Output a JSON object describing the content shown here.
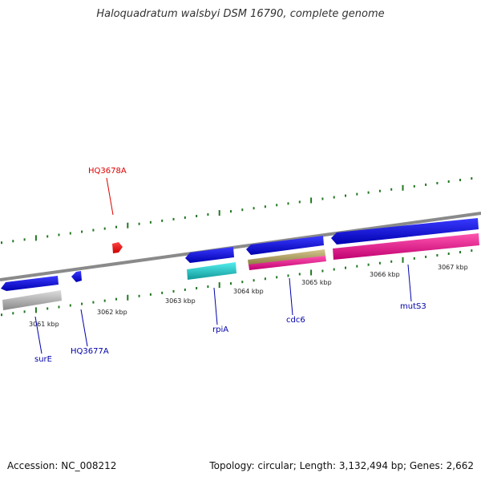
{
  "title": "Haloquadratum walsbyi DSM 16790, complete genome",
  "footer": {
    "accession": "Accession: NC_008212",
    "summary": "Topology: circular; Length: 3,132,494 bp; Genes: 2,662"
  },
  "scale_labels": [
    "3061 kbp",
    "3062 kbp",
    "3063 kbp",
    "3064 kbp",
    "3065 kbp",
    "3066 kbp",
    "3067 kbp"
  ],
  "genes": [
    {
      "name": "HQ3678A",
      "color": "#dd0000"
    },
    {
      "name": "surE",
      "color": "#0000aa"
    },
    {
      "name": "HQ3677A",
      "color": "#0000aa"
    },
    {
      "name": "rpiA",
      "color": "#0000aa"
    },
    {
      "name": "cdc6",
      "color": "#0000aa"
    },
    {
      "name": "mutS3",
      "color": "#0000aa"
    }
  ],
  "colors": {
    "cds": "#1010e0",
    "rrna_grey": "#bbbbbb",
    "cyan": "#22cccc",
    "tan": "#b8a860",
    "magenta": "#ee1a8c",
    "tick": "#227722",
    "backbone": "#888888",
    "forward_marker": "#ff1111"
  }
}
